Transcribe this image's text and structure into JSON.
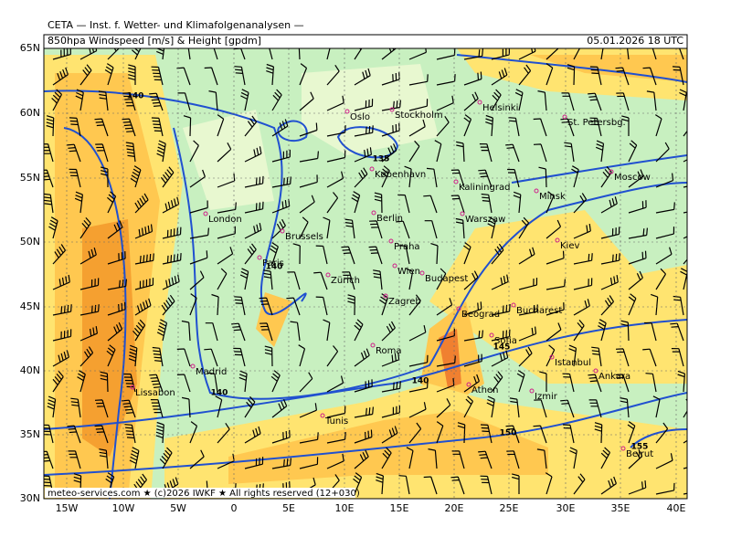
{
  "header": {
    "institute": "CETA — Inst. f. Wetter- und Klimafolgenanalysen —",
    "title": "850hpa Windspeed [m/s] & Height [gpdm]",
    "valid_time": "05.01.2026 18 UTC"
  },
  "map": {
    "latitude_labels": [
      "65N",
      "60N",
      "55N",
      "50N",
      "45N",
      "40N",
      "35N",
      "30N"
    ],
    "longitude_labels": [
      "15W",
      "10W",
      "5W",
      "0",
      "5E",
      "10E",
      "15E",
      "20E",
      "25E",
      "30E",
      "35E",
      "40E"
    ],
    "cities": [
      "Oslo",
      "Stockholm",
      "Helsinki",
      "St. Petersbg.",
      "Moscow",
      "København",
      "Kaliningrad",
      "Minsk",
      "Berlin",
      "Warszaw",
      "London",
      "Brussels",
      "Praha",
      "Kiev",
      "Paris",
      "Wien",
      "Budapest",
      "Zürich",
      "Zagreb",
      "Beograd",
      "Bucharest",
      "Sofia",
      "Roma",
      "Madrid",
      "Istanbul",
      "Ankara",
      "Lissabon",
      "Athen",
      "Izmir",
      "Tunis",
      "Beirut"
    ],
    "contour_labels": [
      "140",
      "135",
      "140",
      "140",
      "140",
      "145",
      "150",
      "155"
    ]
  },
  "footer": "meteo-services.com ★ (c)2026 IWKF ★ All rights reserved (12+030)"
}
